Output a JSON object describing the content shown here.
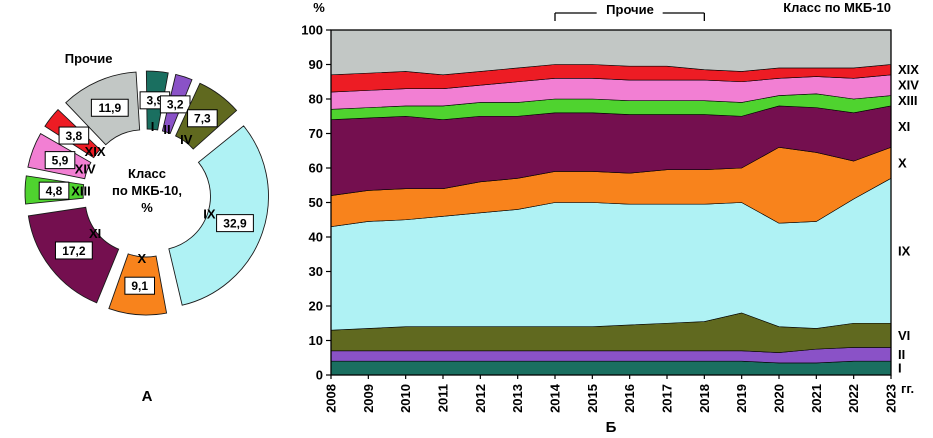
{
  "chart_data": [
    {
      "type": "pie",
      "title": "Класс по МКБ-10, %",
      "labels": [
        "Прочие",
        "I",
        "II",
        "IV",
        "IX",
        "X",
        "XI",
        "XIII",
        "XIV",
        "XIX"
      ],
      "values": [
        11.9,
        3.9,
        3.2,
        7.3,
        32.9,
        9.1,
        17.2,
        4.8,
        5.9,
        3.8
      ],
      "colors": [
        "#c2c7c5",
        "#1a6f60",
        "#8a52c7",
        "#60691f",
        "#aff2f4",
        "#f8831c",
        "#740f4f",
        "#4fd32f",
        "#f27fd3",
        "#ed1c24"
      ],
      "start_angle_deg": -45,
      "exploded": true
    },
    {
      "type": "area",
      "stacked_percent": true,
      "title": "Класс по МКБ-10",
      "ylabel": "%",
      "xlabel": "гг.",
      "ylim": [
        0,
        100
      ],
      "x": [
        2008,
        2009,
        2010,
        2011,
        2012,
        2013,
        2014,
        2015,
        2016,
        2017,
        2018,
        2019,
        2020,
        2021,
        2022,
        2023
      ],
      "series": [
        {
          "name": "I",
          "color": "#1a6f60",
          "values": [
            4,
            4,
            4,
            4,
            4,
            4,
            4,
            4,
            4,
            4,
            4,
            4,
            3.5,
            3.5,
            4,
            4
          ]
        },
        {
          "name": "II",
          "color": "#8a52c7",
          "values": [
            3,
            3,
            3,
            3,
            3,
            3,
            3,
            3,
            3,
            3,
            3,
            3,
            3,
            4,
            4,
            4
          ]
        },
        {
          "name": "VI",
          "color": "#60691f",
          "values": [
            6,
            6.5,
            7,
            7,
            7,
            7,
            7,
            7,
            7.5,
            8,
            8.5,
            11,
            7.5,
            6,
            7,
            7
          ]
        },
        {
          "name": "IX",
          "color": "#aff2f4",
          "values": [
            30,
            31,
            31,
            32,
            33,
            34,
            36,
            36,
            35,
            34.5,
            34,
            32,
            30,
            31,
            36,
            42
          ]
        },
        {
          "name": "X",
          "color": "#f8831c",
          "values": [
            9,
            9,
            9,
            8,
            9,
            9,
            9,
            9,
            9,
            10,
            10,
            10,
            22,
            20,
            11,
            9
          ]
        },
        {
          "name": "XI",
          "color": "#740f4f",
          "values": [
            22,
            21,
            21,
            20,
            19,
            18,
            17,
            17,
            17,
            16,
            16,
            15,
            12,
            13,
            14,
            12
          ]
        },
        {
          "name": "XIII",
          "color": "#4fd32f",
          "values": [
            3,
            3,
            3,
            4,
            4,
            4,
            4,
            4,
            4,
            4,
            4,
            4,
            3,
            4,
            4,
            3
          ]
        },
        {
          "name": "XIV",
          "color": "#f27fd3",
          "values": [
            5,
            5,
            5,
            5,
            5,
            6,
            6,
            6,
            6,
            6,
            6,
            6,
            5,
            5,
            6,
            6
          ]
        },
        {
          "name": "XIX",
          "color": "#ed1c24",
          "values": [
            5,
            5,
            5,
            4,
            4,
            4,
            4,
            4,
            4,
            4,
            3,
            3,
            3,
            2.5,
            3,
            3
          ]
        },
        {
          "name": "Прочие",
          "color": "#c2c7c5",
          "values": [
            13,
            12.5,
            12,
            13,
            12,
            11,
            10,
            10,
            10.5,
            10.5,
            11.5,
            12,
            11,
            11,
            11,
            10
          ]
        }
      ],
      "bracket_span_years": [
        2014,
        2018
      ],
      "legend_position": "right"
    }
  ],
  "panel_a": {
    "caption": "А",
    "center_label": "Класс\nпо МКБ-10,\n%",
    "others_label": "Прочие"
  },
  "panel_b": {
    "caption": "Б",
    "ylabel": "%",
    "x_suffix": "гг.",
    "top_right_label": "Класс по МКБ-10",
    "bracket_label": "Прочие"
  }
}
